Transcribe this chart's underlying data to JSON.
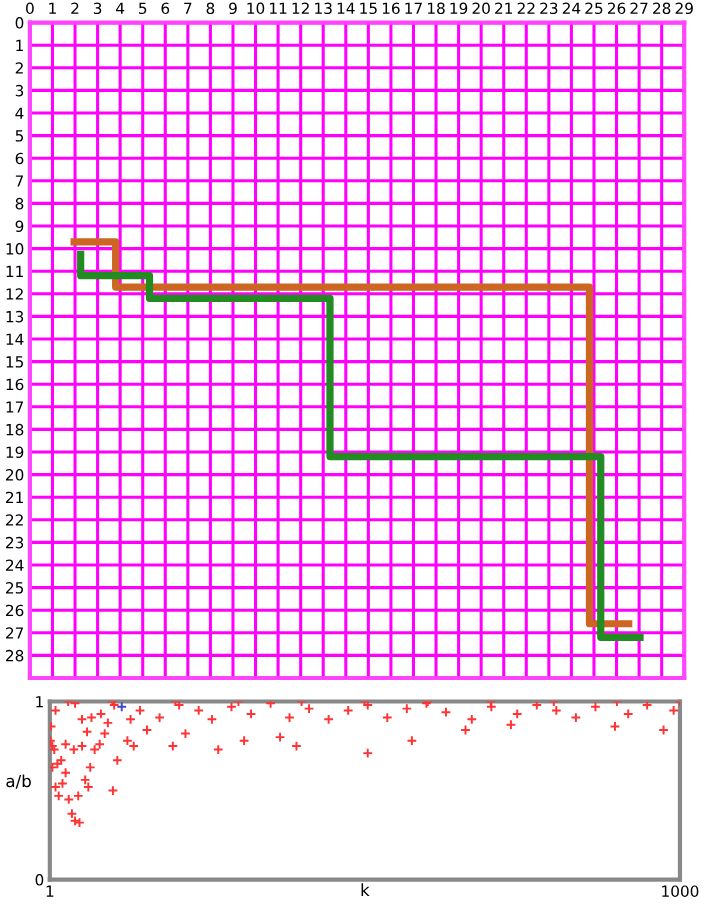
{
  "chart_data": [
    {
      "type": "line",
      "xlim": [
        0,
        29
      ],
      "ylim": [
        29,
        0
      ],
      "xticks": [
        0,
        1,
        2,
        3,
        4,
        5,
        6,
        7,
        8,
        9,
        10,
        11,
        12,
        13,
        14,
        15,
        16,
        17,
        18,
        19,
        20,
        21,
        22,
        23,
        24,
        25,
        26,
        27,
        28,
        29
      ],
      "yticks": [
        0,
        1,
        2,
        3,
        4,
        5,
        6,
        7,
        8,
        9,
        10,
        11,
        12,
        13,
        14,
        15,
        16,
        17,
        18,
        19,
        20,
        21,
        22,
        23,
        24,
        25,
        26,
        27,
        28
      ],
      "grid": true,
      "marker": "none",
      "line_style": "solid",
      "series": [
        {
          "color": "#cc6622",
          "x": [
            1.8,
            3.8,
            3.8,
            24.8,
            24.8,
            26.7
          ],
          "values": [
            9.7,
            9.7,
            11.7,
            11.7,
            26.6,
            26.6
          ]
        },
        {
          "color": "#228b22",
          "x": [
            2.25,
            2.25,
            5.3,
            5.3,
            13.3,
            13.3,
            25.3,
            25.3,
            27.2
          ],
          "values": [
            10.1,
            11.2,
            11.2,
            12.2,
            12.2,
            19.2,
            19.2,
            27.2,
            27.2
          ]
        }
      ]
    },
    {
      "type": "scatter",
      "xlabel": "k",
      "ylabel": "a/b",
      "xlim": [
        1,
        1000
      ],
      "ylim": [
        0,
        1
      ],
      "xticks": [
        1,
        1000
      ],
      "yticks": [
        0,
        1
      ],
      "grid": false,
      "marker": "cross",
      "series": [
        {
          "color": "#ff3333",
          "x": [
            5,
            5,
            10,
            15,
            21,
            26,
            19,
            31,
            36,
            41,
            48,
            46,
            52,
            57,
            62,
            65,
            72,
            80,
            88,
            93,
            101,
            108,
            124,
            134,
            129,
            155,
            196,
            216,
            268,
            309,
            366,
            392,
            505,
            575,
            660,
            732,
            897,
            974,
            10,
            41,
            67,
            82,
            103,
            144,
            175,
            206,
            237,
            258,
            289,
            320,
            351,
            381,
            412,
            443,
            474,
            505,
            536,
            567,
            598,
            629,
            670,
            701,
            742,
            773,
            804,
            835,
            866,
            918,
            948,
            990,
            30,
            100,
            200,
            300,
            400,
            500,
            600,
            700,
            800,
            900,
            1000,
            2,
            3,
            8,
            13,
            26,
            39,
            52,
            60
          ],
          "values": [
            0.75,
            0.63,
            0.52,
            0.47,
            0.54,
            0.6,
            0.67,
            0.45,
            0.37,
            0.33,
            0.32,
            0.47,
            0.75,
            0.56,
            0.52,
            0.63,
            0.73,
            0.76,
            0.82,
            0.88,
            0.5,
            0.67,
            0.78,
            0.75,
            0.9,
            0.84,
            0.75,
            0.82,
            0.73,
            0.78,
            0.8,
            0.75,
            0.71,
            0.78,
            0.84,
            0.87,
            0.86,
            0.84,
            0.95,
            0.99,
            0.91,
            0.93,
            0.98,
            0.95,
            0.91,
            0.98,
            0.95,
            0.9,
            0.97,
            0.93,
            0.99,
            0.91,
            0.96,
            0.9,
            0.95,
            0.98,
            0.91,
            0.96,
            0.99,
            0.94,
            0.9,
            0.97,
            0.93,
            0.98,
            0.95,
            0.91,
            0.97,
            0.93,
            0.98,
            0.95,
            1,
            1,
            1,
            1,
            1,
            1,
            1,
            1,
            1,
            1,
            1,
            0.78,
            0.86,
            0.73,
            0.65,
            0.76,
            0.73,
            0.9,
            0.83
          ]
        },
        {
          "color": "#4444cc",
          "x": [
            115
          ],
          "values": [
            0.97
          ]
        }
      ]
    }
  ]
}
